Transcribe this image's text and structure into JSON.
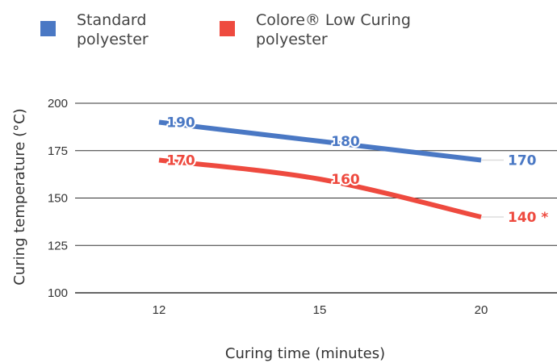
{
  "chart_data": {
    "type": "line",
    "title": "",
    "xlabel": "Curing time (minutes)",
    "ylabel": "Curing temperature (°C)",
    "categories": [
      "12",
      "15",
      "20"
    ],
    "ylim": [
      100,
      200
    ],
    "yticks": [
      "100",
      "125",
      "150",
      "175",
      "200"
    ],
    "grid": true,
    "legend_position": "top-left",
    "series": [
      {
        "name": "Standard polyester",
        "legend_lines": [
          "Standard",
          "polyester"
        ],
        "color": "#4a78c4",
        "values": [
          190,
          180,
          170
        ],
        "labels": [
          "190",
          "180",
          "170"
        ]
      },
      {
        "name": "Colore® Low Curing polyester",
        "legend_lines": [
          "Colore® Low Curing",
          "polyester"
        ],
        "color": "#ee4a3f",
        "values": [
          170,
          160,
          140
        ],
        "labels": [
          "170",
          "160",
          "140 *"
        ]
      }
    ]
  }
}
